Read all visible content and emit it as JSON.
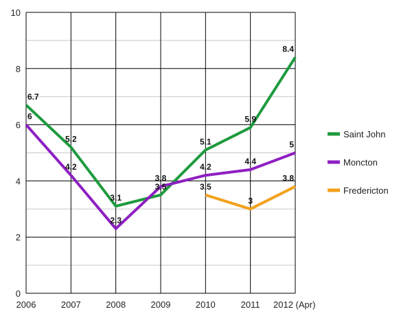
{
  "chart_data": {
    "type": "line",
    "title": "",
    "xlabel": "",
    "ylabel": "",
    "categories": [
      "2006",
      "2007",
      "2008",
      "2009",
      "2010",
      "2011",
      "2012 (Apr)"
    ],
    "ylim": [
      0,
      10
    ],
    "yticks": [
      "0",
      "2",
      "4",
      "6",
      "8",
      "10"
    ],
    "grid": true,
    "minor_grid": true,
    "legend_position": "right",
    "series": [
      {
        "name": "Saint John",
        "color": "#1e9a3e",
        "values": [
          6.7,
          5.2,
          3.1,
          3.5,
          5.1,
          5.9,
          8.4
        ],
        "labels": [
          "6.7",
          "5.2",
          "3.1",
          "3.5",
          "5.1",
          "5.9",
          "8.4"
        ]
      },
      {
        "name": "Moncton",
        "color": "#8e1fc2",
        "values": [
          6.0,
          4.2,
          2.3,
          3.8,
          4.2,
          4.4,
          5.0
        ],
        "labels": [
          "6",
          "4.2",
          "2.3",
          "3.8",
          "4.2",
          "4.4",
          "5"
        ]
      },
      {
        "name": "Fredericton",
        "color": "#f2a11c",
        "values": [
          null,
          null,
          null,
          null,
          3.5,
          3.0,
          3.8
        ],
        "labels": [
          null,
          null,
          null,
          null,
          "3.5",
          "3",
          "3.8"
        ]
      }
    ]
  }
}
